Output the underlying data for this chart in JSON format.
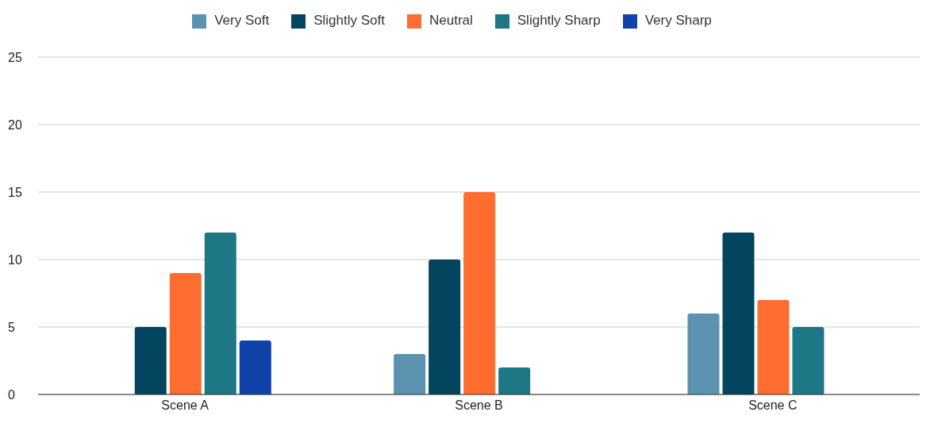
{
  "chart_data": {
    "type": "bar",
    "categories": [
      "Scene A",
      "Scene B",
      "Scene C"
    ],
    "series": [
      {
        "name": "Very Soft",
        "color": "#5b93b0",
        "values": [
          0,
          3,
          6
        ]
      },
      {
        "name": "Slightly Soft",
        "color": "#03455f",
        "values": [
          5,
          10,
          12
        ]
      },
      {
        "name": "Neutral",
        "color": "#ff6d31",
        "values": [
          9,
          15,
          7
        ]
      },
      {
        "name": "Slightly Sharp",
        "color": "#1e7785",
        "values": [
          12,
          2,
          5
        ]
      },
      {
        "name": "Very Sharp",
        "color": "#1043a9",
        "values": [
          4,
          0,
          0
        ]
      }
    ],
    "ylim": [
      0,
      25
    ],
    "yticks": [
      0,
      5,
      10,
      15,
      20,
      25
    ],
    "grid": "y",
    "legend": "top"
  }
}
